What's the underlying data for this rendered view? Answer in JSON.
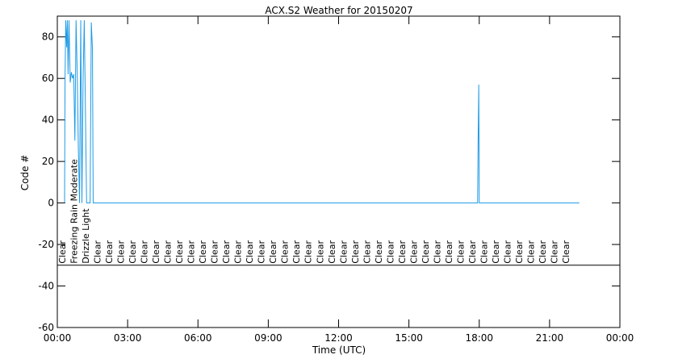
{
  "chart_data": {
    "type": "line",
    "title": "ACX.S2 Weather for 20150207",
    "xlabel": "Time (UTC)",
    "ylabel": "Code #",
    "x": [
      0.31,
      0.33,
      0.36,
      0.4,
      0.43,
      0.46,
      0.5,
      0.55,
      0.6,
      0.65,
      0.7,
      0.75,
      0.8,
      0.85,
      0.9,
      0.95,
      1.0,
      1.05,
      1.1,
      1.15,
      1.2,
      1.25,
      1.4,
      1.45,
      1.5,
      1.53,
      17.93,
      17.95,
      17.98,
      18.0,
      22.27
    ],
    "series": [
      {
        "name": "Code",
        "color": "#1e9be6",
        "values": [
          0,
          60,
          88,
          75,
          88,
          62,
          88,
          58,
          63,
          60,
          62,
          30,
          88,
          62,
          25,
          0,
          88,
          0,
          60,
          88,
          44,
          0,
          0,
          87,
          74,
          0,
          0,
          28,
          57,
          0,
          0
        ]
      }
    ],
    "xlim": [
      0,
      24
    ],
    "ylim": [
      -60,
      90
    ],
    "xticks": [
      {
        "value": 0,
        "label": "00:00"
      },
      {
        "value": 3,
        "label": "03:00"
      },
      {
        "value": 6,
        "label": "06:00"
      },
      {
        "value": 9,
        "label": "09:00"
      },
      {
        "value": 12,
        "label": "12:00"
      },
      {
        "value": 15,
        "label": "15:00"
      },
      {
        "value": 18,
        "label": "18:00"
      },
      {
        "value": 21,
        "label": "21:00"
      },
      {
        "value": 24,
        "label": "00:00"
      }
    ],
    "yticks": [
      -60,
      -40,
      -20,
      0,
      20,
      40,
      60,
      80
    ],
    "hline": -30,
    "annotations": [
      {
        "x": 0.2,
        "label": "Clear"
      },
      {
        "x": 0.7,
        "label": "Freezing Rain Moderate"
      },
      {
        "x": 1.2,
        "label": "Drizzle Light"
      },
      {
        "x": 1.7,
        "label": "Clear"
      },
      {
        "x": 2.2,
        "label": "Clear"
      },
      {
        "x": 2.7,
        "label": "Clear"
      },
      {
        "x": 3.2,
        "label": "Clear"
      },
      {
        "x": 3.7,
        "label": "Clear"
      },
      {
        "x": 4.2,
        "label": "Clear"
      },
      {
        "x": 4.7,
        "label": "Clear"
      },
      {
        "x": 5.2,
        "label": "Clear"
      },
      {
        "x": 5.7,
        "label": "Clear"
      },
      {
        "x": 6.2,
        "label": "Clear"
      },
      {
        "x": 6.7,
        "label": "Clear"
      },
      {
        "x": 7.2,
        "label": "Clear"
      },
      {
        "x": 7.7,
        "label": "Clear"
      },
      {
        "x": 8.2,
        "label": "Clear"
      },
      {
        "x": 8.7,
        "label": "Clear"
      },
      {
        "x": 9.2,
        "label": "Clear"
      },
      {
        "x": 9.7,
        "label": "Clear"
      },
      {
        "x": 10.2,
        "label": "Clear"
      },
      {
        "x": 10.7,
        "label": "Clear"
      },
      {
        "x": 11.2,
        "label": "Clear"
      },
      {
        "x": 11.7,
        "label": "Clear"
      },
      {
        "x": 12.2,
        "label": "Clear"
      },
      {
        "x": 12.7,
        "label": "Clear"
      },
      {
        "x": 13.2,
        "label": "Clear"
      },
      {
        "x": 13.7,
        "label": "Clear"
      },
      {
        "x": 14.2,
        "label": "Clear"
      },
      {
        "x": 14.7,
        "label": "Clear"
      },
      {
        "x": 15.2,
        "label": "Clear"
      },
      {
        "x": 15.7,
        "label": "Clear"
      },
      {
        "x": 16.2,
        "label": "Clear"
      },
      {
        "x": 16.7,
        "label": "Clear"
      },
      {
        "x": 17.2,
        "label": "Clear"
      },
      {
        "x": 17.7,
        "label": "Clear"
      },
      {
        "x": 18.2,
        "label": "Clear"
      },
      {
        "x": 18.7,
        "label": "Clear"
      },
      {
        "x": 19.2,
        "label": "Clear"
      },
      {
        "x": 19.7,
        "label": "Clear"
      },
      {
        "x": 20.2,
        "label": "Clear"
      },
      {
        "x": 20.7,
        "label": "Clear"
      },
      {
        "x": 21.2,
        "label": "Clear"
      },
      {
        "x": 21.7,
        "label": "Clear"
      }
    ]
  }
}
